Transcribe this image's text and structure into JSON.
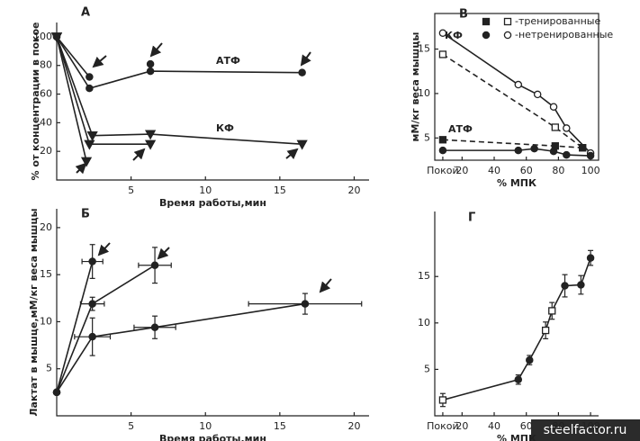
{
  "chart_data": [
    {
      "type": "line",
      "title": "А",
      "xlabel": "Время работы,мин",
      "ylabel": "% от концентрации в покое",
      "xlim": [
        0,
        21
      ],
      "ylim": [
        0,
        110
      ],
      "xticks": [
        5,
        10,
        15,
        20
      ],
      "yticks": [
        20,
        40,
        60,
        80,
        100
      ],
      "color": "#222",
      "annotations": [
        "АТФ",
        "КФ"
      ],
      "frame": false,
      "series": [
        {
          "x": [
            0,
            2.2
          ],
          "values": [
            100,
            72
          ],
          "marker": "circle-filled",
          "dashed": false
        },
        {
          "x": [
            0,
            2.2,
            6.3,
            16.5
          ],
          "values": [
            100,
            64,
            76,
            75
          ],
          "marker": "circle-filled",
          "dashed": false
        },
        {
          "x": [
            6.3
          ],
          "values": [
            81
          ],
          "marker": "circle-filled",
          "dashed": false
        },
        {
          "x": [
            0,
            2.4,
            6.3,
            16.5
          ],
          "values": [
            100,
            31,
            32,
            25
          ],
          "marker": "triangle-filled",
          "dashed": false
        },
        {
          "x": [
            0,
            2.2,
            6.3
          ],
          "values": [
            100,
            25,
            25
          ],
          "marker": "triangle-filled",
          "dashed": false
        },
        {
          "x": [
            0,
            2.0
          ],
          "values": [
            100,
            13
          ],
          "marker": "triangle-filled",
          "dashed": false
        }
      ]
    },
    {
      "type": "line",
      "title": "В",
      "xlabel": "% МПК",
      "ylabel": "мМ/кг веса мышцы",
      "xlim": [
        3,
        105
      ],
      "ylim": [
        2.5,
        19
      ],
      "xticks": [
        {
          "value": 8,
          "label": "Покой"
        },
        20,
        40,
        60,
        80,
        100
      ],
      "yticks": [
        5,
        10,
        15
      ],
      "color": "#222",
      "annotations": [
        "КФ",
        "АТФ"
      ],
      "frame": true,
      "legend": [
        {
          "label": "-тренированные",
          "markers": [
            "square-filled",
            "square-open"
          ]
        },
        {
          "label": "-нетренированные",
          "markers": [
            "circle-filled",
            "circle-open"
          ]
        }
      ],
      "series": [
        {
          "x": [
            8,
            55,
            67,
            77,
            85,
            100
          ],
          "values": [
            16.8,
            11,
            9.9,
            8.5,
            6.1,
            3.3
          ],
          "marker": "circle-open",
          "dashed": false
        },
        {
          "x": [
            8,
            78,
            95
          ],
          "values": [
            14.4,
            6.2,
            3.9
          ],
          "marker": "square-open",
          "dashed": true
        },
        {
          "x": [
            8,
            78,
            95
          ],
          "values": [
            4.8,
            4.1,
            3.9
          ],
          "marker": "square-filled",
          "dashed": true
        },
        {
          "x": [
            8,
            55,
            65,
            77,
            85,
            100
          ],
          "values": [
            3.6,
            3.6,
            3.8,
            3.5,
            3.1,
            3.0
          ],
          "marker": "circle-filled",
          "dashed": false
        }
      ]
    },
    {
      "type": "errorbar",
      "title": "Б",
      "xlabel": "Время работы,мин",
      "ylabel": "Лактат в мышце,мМ/кг веса мышцы",
      "xlim": [
        0,
        21
      ],
      "ylim": [
        0,
        22
      ],
      "xticks": [
        5,
        10,
        15,
        20
      ],
      "yticks": [
        5,
        10,
        15,
        20
      ],
      "color": "#222",
      "frame": false,
      "series": [
        {
          "x": [
            0,
            2.4
          ],
          "values": [
            2.5,
            16.4
          ],
          "errors": [
            null,
            1.8
          ],
          "xerrors": [
            null,
            0.7
          ],
          "marker": "circle-filled"
        },
        {
          "x": [
            0,
            2.4,
            6.6
          ],
          "values": [
            2.5,
            11.9,
            16
          ],
          "errors": [
            null,
            0.7,
            1.9
          ],
          "xerrors": [
            null,
            0.8,
            1.1
          ],
          "marker": "circle-filled"
        },
        {
          "x": [
            0,
            2.4,
            6.6,
            16.7
          ],
          "values": [
            2.5,
            8.4,
            9.4,
            11.9
          ],
          "errors": [
            null,
            2,
            1.2,
            1.1
          ],
          "xerrors": [
            null,
            1.2,
            1.4,
            3.8
          ],
          "marker": "circle-filled"
        }
      ]
    },
    {
      "type": "errorbar",
      "title": "Г",
      "xlabel": "% МПК",
      "xlim": [
        3,
        105
      ],
      "ylim": [
        0,
        22
      ],
      "xticks": [
        {
          "value": 8,
          "label": "Покой"
        },
        20,
        40,
        60,
        80,
        100
      ],
      "yticks": [
        5,
        10,
        15
      ],
      "color": "#222",
      "frame": false,
      "series": [
        {
          "x": [
            8,
            55,
            62,
            72,
            76,
            84,
            94,
            100
          ],
          "values": [
            1.7,
            3.9,
            6,
            9.2,
            11.3,
            14,
            14.1,
            17
          ],
          "errors": [
            0.7,
            0.5,
            0.5,
            0.9,
            0.9,
            1.2,
            1,
            0.8
          ],
          "markers": [
            "square-open",
            "circle-filled",
            "circle-filled",
            "square-open",
            "square-open",
            "circle-filled",
            "circle-filled",
            "circle-filled"
          ]
        }
      ]
    }
  ],
  "watermark": "steelfactor.ru"
}
